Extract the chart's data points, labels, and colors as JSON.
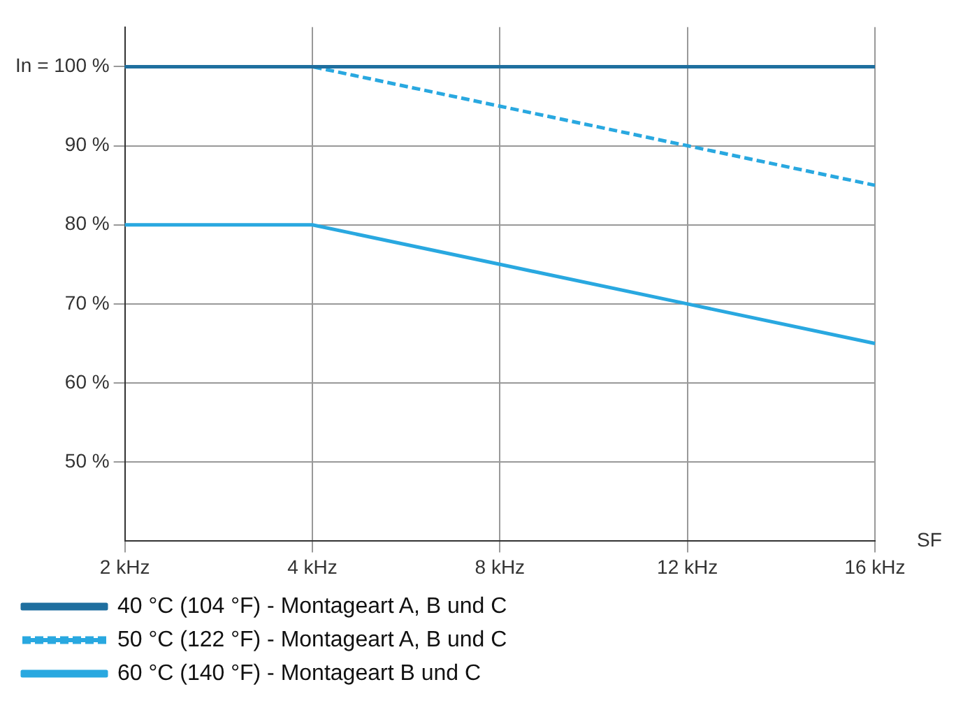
{
  "chart_data": {
    "type": "line",
    "xlabel": "SF",
    "categories": [
      "2 kHz",
      "4 kHz",
      "8 kHz",
      "12 kHz",
      "16 kHz"
    ],
    "series": [
      {
        "name": "40 °C (104 °F) - Montageart A, B und C",
        "color": "#1f6f9f",
        "values": [
          100,
          100,
          100,
          100,
          100
        ],
        "line_style": "solid"
      },
      {
        "name": "50 °C (122 °F) - Montageart A, B und C",
        "color": "#29a8e0",
        "values": [
          100,
          100,
          95,
          90,
          85
        ],
        "line_style": "dashed"
      },
      {
        "name": "60 °C (140 °F) - Montageart B und C",
        "color": "#29a8e0",
        "values": [
          80,
          80,
          75,
          70,
          65
        ],
        "line_style": "solid"
      }
    ],
    "ylim": [
      40,
      105
    ],
    "yticks": [
      {
        "value": 50,
        "label": "50 %"
      },
      {
        "value": 60,
        "label": "60 %"
      },
      {
        "value": 70,
        "label": "70 %"
      },
      {
        "value": 80,
        "label": "80 %"
      },
      {
        "value": 90,
        "label": "90 %"
      },
      {
        "value": 100,
        "label": "In = 100 %"
      }
    ],
    "grid": true,
    "legend": "bottom",
    "marker": "none"
  }
}
